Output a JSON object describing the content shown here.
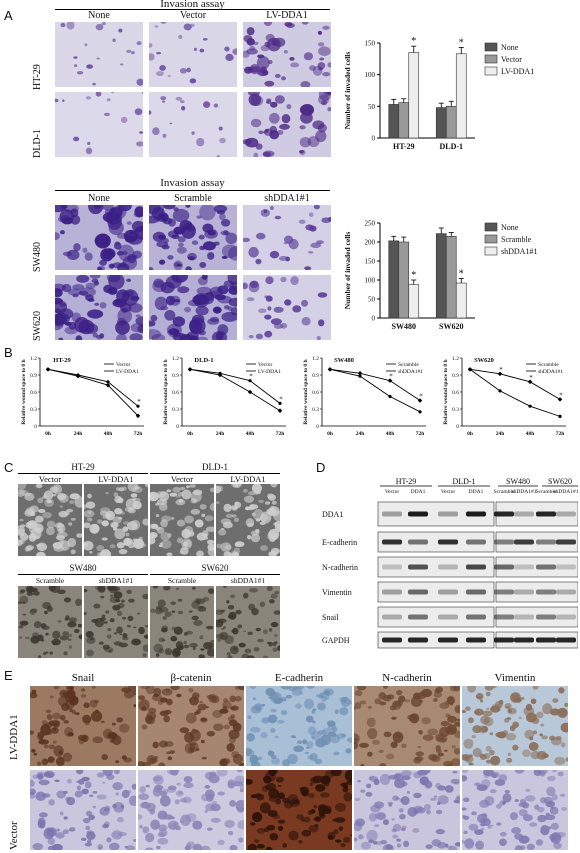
{
  "panels": {
    "A": "A",
    "B": "B",
    "C": "C",
    "D": "D",
    "E": "E"
  },
  "panelA": {
    "top": {
      "title": "Invasion assay",
      "columns": [
        "None",
        "Vector",
        "LV-DDA1"
      ],
      "rows": [
        "HT-29",
        "DLD-1"
      ]
    },
    "bottom": {
      "title": "Invasion assay",
      "columns": [
        "None",
        "Scramble",
        "shDDA1#1"
      ],
      "rows": [
        "SW480",
        "SW620"
      ]
    }
  },
  "chart_data": [
    {
      "type": "bar",
      "ylabel": "Number of invaded cells",
      "categories": [
        "HT-29",
        "DLD-1"
      ],
      "ylim": [
        0,
        150
      ],
      "series": [
        {
          "name": "None",
          "values": [
            53,
            48
          ],
          "err": [
            8,
            7
          ]
        },
        {
          "name": "Vector",
          "values": [
            56,
            50
          ],
          "err": [
            6,
            8
          ]
        },
        {
          "name": "LV-DDA1",
          "values": [
            135,
            133
          ],
          "err": [
            10,
            10
          ]
        }
      ],
      "annotations": [
        "*",
        "*"
      ],
      "colors": [
        "#555555",
        "#999999",
        "#eeeeee"
      ]
    },
    {
      "type": "bar",
      "ylabel": "Number of invaded cells",
      "categories": [
        "SW480",
        "SW620"
      ],
      "ylim": [
        0,
        250
      ],
      "series": [
        {
          "name": "None",
          "values": [
            203,
            222
          ],
          "err": [
            12,
            15
          ]
        },
        {
          "name": "Scramble",
          "values": [
            200,
            215
          ],
          "err": [
            13,
            10
          ]
        },
        {
          "name": "shDDA1#1",
          "values": [
            88,
            92
          ],
          "err": [
            12,
            12
          ]
        }
      ],
      "annotations": [
        "*",
        "*"
      ],
      "colors": [
        "#555555",
        "#999999",
        "#eeeeee"
      ]
    },
    {
      "type": "line",
      "title": "HT-29",
      "ylabel": "Relative wound space to 0 h",
      "x": [
        "0h",
        "24h",
        "48h",
        "72h"
      ],
      "ylim": [
        0,
        1.2
      ],
      "yticks": [
        "0",
        "0.3",
        "0.6",
        "0.9",
        "1.2"
      ],
      "series": [
        {
          "name": "Vector",
          "values": [
            1.0,
            0.9,
            0.78,
            0.35
          ],
          "marker": "circle"
        },
        {
          "name": "LV-DDA1",
          "values": [
            1.0,
            0.88,
            0.72,
            0.18
          ],
          "marker": "diamond"
        }
      ],
      "annotations": [
        "*"
      ]
    },
    {
      "type": "line",
      "title": "DLD-1",
      "ylabel": "Relative wound space to 0 h",
      "x": [
        "0h",
        "24h",
        "48h",
        "72h"
      ],
      "ylim": [
        0,
        1.2
      ],
      "yticks": [
        "0",
        "0.3",
        "0.6",
        "0.9",
        "1.2"
      ],
      "series": [
        {
          "name": "Vector",
          "values": [
            1.0,
            0.93,
            0.8,
            0.4
          ],
          "marker": "circle"
        },
        {
          "name": "LV-DDA1",
          "values": [
            1.0,
            0.9,
            0.6,
            0.27
          ],
          "marker": "diamond"
        }
      ],
      "annotations": [
        "*",
        "*"
      ]
    },
    {
      "type": "line",
      "title": "SW480",
      "ylabel": "Relative wound space to 0 h",
      "x": [
        "0h",
        "24h",
        "48h",
        "72h"
      ],
      "ylim": [
        0,
        1.2
      ],
      "yticks": [
        "0",
        "0.3",
        "0.6",
        "0.9",
        "1.2"
      ],
      "series": [
        {
          "name": "Scramble",
          "values": [
            1.0,
            0.88,
            0.52,
            0.25
          ],
          "marker": "circle"
        },
        {
          "name": "shDDA1#1",
          "values": [
            1.0,
            0.93,
            0.8,
            0.45
          ],
          "marker": "diamond"
        }
      ],
      "annotations": [
        "*",
        "*"
      ]
    },
    {
      "type": "line",
      "title": "SW620",
      "ylabel": "Relative wound space to 0 h",
      "x": [
        "0h",
        "24h",
        "48h",
        "72h"
      ],
      "ylim": [
        0,
        1.2
      ],
      "yticks": [
        "0",
        "0.3",
        "0.6",
        "0.9",
        "1.2"
      ],
      "series": [
        {
          "name": "Scramble",
          "values": [
            1.0,
            0.62,
            0.35,
            0.17
          ],
          "marker": "circle"
        },
        {
          "name": "shDDA1#1",
          "values": [
            1.0,
            0.92,
            0.78,
            0.47
          ],
          "marker": "diamond"
        }
      ],
      "annotations": [
        "*",
        "*",
        "*"
      ]
    }
  ],
  "panelC": {
    "top_groups": [
      "HT-29",
      "DLD-1"
    ],
    "top_columns": [
      "Vector",
      "LV-DDA1",
      "Vector",
      "LV-DDA1"
    ],
    "bottom_groups": [
      "SW480",
      "SW620"
    ],
    "bottom_columns": [
      "Scramble",
      "shDDA1#1",
      "Scramble",
      "shDDA1#1"
    ]
  },
  "panelD": {
    "groups": [
      "HT-29",
      "DLD-1",
      "SW480",
      "SW620"
    ],
    "lanes": [
      "Vector",
      "DDA1",
      "Vector",
      "DDA1",
      "Scramble",
      "shDDA1#1",
      "Scramble",
      "shDDA1#1"
    ],
    "lanes_display": [
      "Vector",
      "DDA1",
      "Vector",
      "DDA1",
      "Scramble",
      "shDDA1#1",
      "Scramble",
      "shDDA1#1"
    ],
    "proteins": [
      "DDA1",
      "E-cadherin",
      "N-cadherin",
      "Vimentin",
      "Snail",
      "GAPDH"
    ]
  },
  "panelE": {
    "columns": [
      "Snail",
      "β-catenin",
      "E-cadherin",
      "N-cadherin",
      "Vimentin"
    ],
    "rows": [
      "LV-DDA1",
      "Vector"
    ]
  }
}
